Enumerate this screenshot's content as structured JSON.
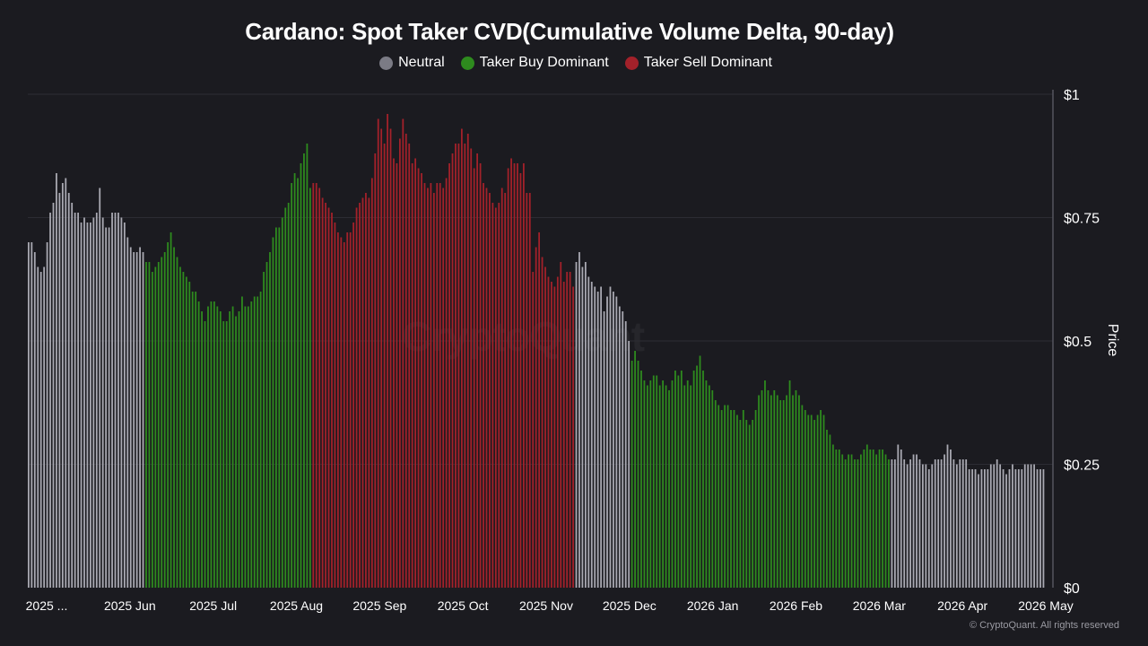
{
  "title": "Cardano: Spot Taker CVD(Cumulative Volume Delta, 90-day)",
  "legend": [
    {
      "label": "Neutral",
      "color": "#7b7b85"
    },
    {
      "label": "Taker Buy Dominant",
      "color": "#2e8b1e"
    },
    {
      "label": "Taker Sell Dominant",
      "color": "#a3212a"
    }
  ],
  "watermark": "CryptoQuant",
  "credit": "© CryptoQuant. All rights reserved",
  "colors": {
    "background": "#1b1b20",
    "neutral": "#a9a9b2",
    "buy": "#2e8b1e",
    "sell": "#a3212a",
    "grid": "#2c2c33"
  },
  "chart_data": {
    "type": "bar",
    "ylabel": "Price",
    "ylim": [
      0,
      1
    ],
    "y_ticks": [
      "$0",
      "$0.25",
      "$0.5",
      "$0.75",
      "$1"
    ],
    "x_ticks": [
      "2025 ...",
      "2025 Jun",
      "2025 Jul",
      "2025 Aug",
      "2025 Sep",
      "2025 Oct",
      "2025 Nov",
      "2025 Dec",
      "2026 Jan",
      "2026 Feb",
      "2026 Mar",
      "2026 Apr",
      "2026 May"
    ],
    "grid": true,
    "legend_position": "top-center",
    "segments": [
      {
        "state": "Neutral",
        "color_key": "neutral",
        "values": [
          0.7,
          0.7,
          0.68,
          0.65,
          0.64,
          0.65,
          0.7,
          0.76,
          0.78,
          0.84,
          0.8,
          0.82,
          0.83,
          0.8,
          0.78,
          0.76,
          0.76,
          0.74,
          0.75,
          0.74,
          0.74,
          0.75,
          0.76,
          0.81,
          0.75,
          0.73,
          0.73,
          0.76,
          0.76,
          0.76,
          0.75,
          0.74,
          0.71,
          0.69,
          0.68,
          0.68,
          0.69,
          0.68
        ]
      },
      {
        "state": "Taker Buy Dominant",
        "color_key": "buy",
        "values": [
          0.66,
          0.66,
          0.64,
          0.65,
          0.66,
          0.67,
          0.68,
          0.7,
          0.72,
          0.69,
          0.67,
          0.65,
          0.64,
          0.63,
          0.62,
          0.6,
          0.6,
          0.58,
          0.56,
          0.54,
          0.57,
          0.58,
          0.58,
          0.57,
          0.56,
          0.54,
          0.54,
          0.56,
          0.57,
          0.55,
          0.56,
          0.59,
          0.57,
          0.57,
          0.58,
          0.59,
          0.59,
          0.6,
          0.64,
          0.66,
          0.68,
          0.71,
          0.73,
          0.73,
          0.75,
          0.77,
          0.78,
          0.82,
          0.84,
          0.83,
          0.86,
          0.88,
          0.9,
          0.81
        ]
      },
      {
        "state": "Taker Sell Dominant",
        "color_key": "sell",
        "values": [
          0.82,
          0.82,
          0.81,
          0.79,
          0.78,
          0.77,
          0.76,
          0.74,
          0.72,
          0.71,
          0.7,
          0.72,
          0.72,
          0.74,
          0.77,
          0.78,
          0.79,
          0.8,
          0.79,
          0.83,
          0.88,
          0.95,
          0.93,
          0.9,
          0.96,
          0.93,
          0.87,
          0.86,
          0.91,
          0.95,
          0.92,
          0.9,
          0.86,
          0.87,
          0.85,
          0.84,
          0.82,
          0.81,
          0.82,
          0.8,
          0.82,
          0.82,
          0.81,
          0.83,
          0.86,
          0.88,
          0.9,
          0.9,
          0.93,
          0.9,
          0.92,
          0.89,
          0.85,
          0.88,
          0.86,
          0.82,
          0.81,
          0.8,
          0.78,
          0.77,
          0.78,
          0.81,
          0.8,
          0.85,
          0.87,
          0.86,
          0.86,
          0.84,
          0.86,
          0.8,
          0.8,
          0.64,
          0.69,
          0.72,
          0.67,
          0.65,
          0.63,
          0.62,
          0.61,
          0.63,
          0.66,
          0.62,
          0.64,
          0.64,
          0.61
        ]
      },
      {
        "state": "Neutral",
        "color_key": "neutral",
        "values": [
          0.66,
          0.68,
          0.65,
          0.66,
          0.63,
          0.62,
          0.61,
          0.6,
          0.61,
          0.56,
          0.59,
          0.61,
          0.6,
          0.59,
          0.57,
          0.56,
          0.54,
          0.5
        ]
      },
      {
        "state": "Taker Buy Dominant",
        "color_key": "buy",
        "values": [
          0.46,
          0.48,
          0.46,
          0.44,
          0.42,
          0.41,
          0.42,
          0.43,
          0.43,
          0.41,
          0.42,
          0.41,
          0.4,
          0.42,
          0.44,
          0.43,
          0.44,
          0.41,
          0.42,
          0.41,
          0.44,
          0.45,
          0.47,
          0.44,
          0.42,
          0.41,
          0.4,
          0.38,
          0.37,
          0.36,
          0.37,
          0.37,
          0.36,
          0.36,
          0.35,
          0.34,
          0.36,
          0.34,
          0.33,
          0.34,
          0.36,
          0.39,
          0.4,
          0.42,
          0.4,
          0.39,
          0.4,
          0.39,
          0.38,
          0.38,
          0.39,
          0.42,
          0.39,
          0.4,
          0.39,
          0.37,
          0.36,
          0.35,
          0.35,
          0.34,
          0.35,
          0.36,
          0.35,
          0.32,
          0.31,
          0.29,
          0.28,
          0.28,
          0.27,
          0.26,
          0.27,
          0.27,
          0.26,
          0.26,
          0.27,
          0.28,
          0.29,
          0.28,
          0.28,
          0.27,
          0.28,
          0.28,
          0.27,
          0.26
        ]
      },
      {
        "state": "Neutral",
        "color_key": "neutral",
        "values": [
          0.26,
          0.26,
          0.29,
          0.28,
          0.26,
          0.25,
          0.26,
          0.27,
          0.27,
          0.26,
          0.25,
          0.25,
          0.24,
          0.25,
          0.26,
          0.26,
          0.26,
          0.27,
          0.29,
          0.28,
          0.26,
          0.25,
          0.26,
          0.26,
          0.26,
          0.24,
          0.24,
          0.24,
          0.23,
          0.24,
          0.24,
          0.24,
          0.25,
          0.25,
          0.26,
          0.25,
          0.24,
          0.23,
          0.24,
          0.25,
          0.24,
          0.24,
          0.24,
          0.25,
          0.25,
          0.25,
          0.25,
          0.24,
          0.24,
          0.24
        ]
      }
    ]
  }
}
